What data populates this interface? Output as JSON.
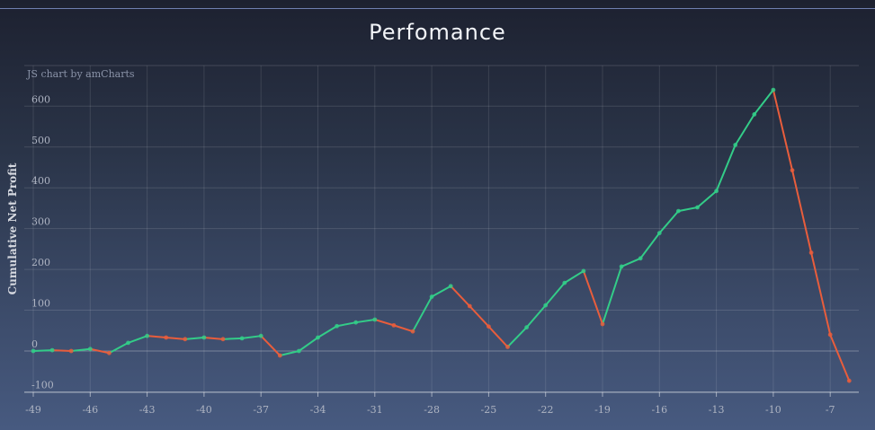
{
  "page": {
    "title": "Perfomance",
    "credit": "JS chart by amCharts"
  },
  "colors": {
    "up": "#33cc88",
    "down": "#e85d3c",
    "grid": "#ffffff"
  },
  "chart_data": {
    "type": "line",
    "title": "Perfomance",
    "xlabel": "",
    "ylabel": "Cumulative Net Profit",
    "xlim": [
      -49,
      -6
    ],
    "ylim": [
      -100,
      700
    ],
    "x_ticks": [
      -49,
      -46,
      -43,
      -40,
      -37,
      -34,
      -31,
      -28,
      -25,
      -22,
      -19,
      -16,
      -13,
      -10,
      -7
    ],
    "y_ticks": [
      -100,
      0,
      100,
      200,
      300,
      400,
      500,
      600
    ],
    "grid": true,
    "legend": "none",
    "series": [
      {
        "x": [
          -49,
          -48,
          -47,
          -46,
          -45,
          -44,
          -43,
          -42,
          -41,
          -40,
          -39,
          -38,
          -37,
          -36,
          -35,
          -34,
          -33,
          -32,
          -31,
          -30,
          -29,
          -28,
          -27,
          -26,
          -25,
          -24,
          -23,
          -22,
          -21,
          -20,
          -19,
          -18,
          -17,
          -16,
          -15,
          -14,
          -13,
          -12,
          -11,
          -10,
          -9,
          -8,
          -7,
          -6
        ],
        "y": [
          0,
          2,
          0,
          5,
          -5,
          20,
          37,
          33,
          29,
          33,
          29,
          31,
          37,
          -11,
          0,
          33,
          61,
          70,
          77,
          63,
          48,
          133,
          159,
          110,
          60,
          10,
          58,
          112,
          167,
          196,
          66,
          207,
          227,
          289,
          343,
          352,
          392,
          505,
          580,
          640,
          443,
          241,
          40,
          -73
        ]
      }
    ]
  }
}
